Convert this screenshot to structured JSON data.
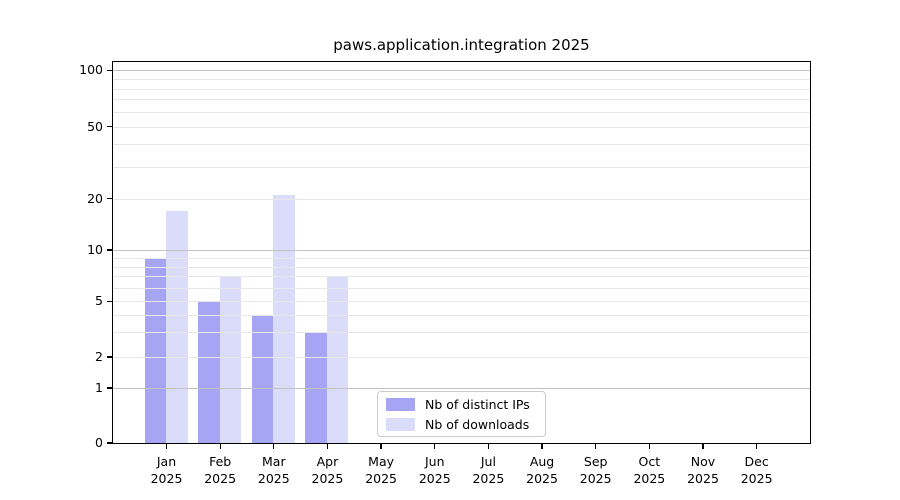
{
  "chart_data": {
    "type": "bar",
    "title": "paws.application.integration 2025",
    "categories": [
      "Jan",
      "Feb",
      "Mar",
      "Apr",
      "May",
      "Jun",
      "Jul",
      "Aug",
      "Sep",
      "Oct",
      "Nov",
      "Dec"
    ],
    "x_sublabel": "2025",
    "series": [
      {
        "name": "Nb of distinct IPs",
        "color": "#a5a5f4",
        "values": [
          9,
          5,
          4,
          3,
          0,
          0,
          0,
          0,
          0,
          0,
          0,
          0
        ]
      },
      {
        "name": "Nb of downloads",
        "color": "#dbdbfa",
        "values": [
          17,
          7,
          21,
          7,
          0,
          0,
          0,
          0,
          0,
          0,
          0,
          0
        ]
      }
    ],
    "yaxis": {
      "scale": "log-with-zero-baseline",
      "tick_values": [
        0,
        1,
        2,
        5,
        10,
        20,
        50,
        100
      ],
      "tick_labels": [
        "0",
        "1",
        "2",
        "5",
        "10",
        "20",
        "50",
        "100"
      ],
      "major_gridline_values": [
        1,
        10,
        100
      ],
      "minor_gridline_values": [
        2,
        3,
        4,
        5,
        6,
        7,
        8,
        9,
        20,
        30,
        40,
        50,
        60,
        70,
        80,
        90
      ],
      "ylim": [
        0,
        100
      ]
    },
    "grid": "on",
    "legend": {
      "position": "bottom-center",
      "entries": [
        "Nb of distinct IPs",
        "Nb of downloads"
      ]
    },
    "colors": {
      "major_grid": "#c2c2c2",
      "minor_grid": "#e8e8e8",
      "spine": "#000000",
      "text": "#000000"
    }
  }
}
